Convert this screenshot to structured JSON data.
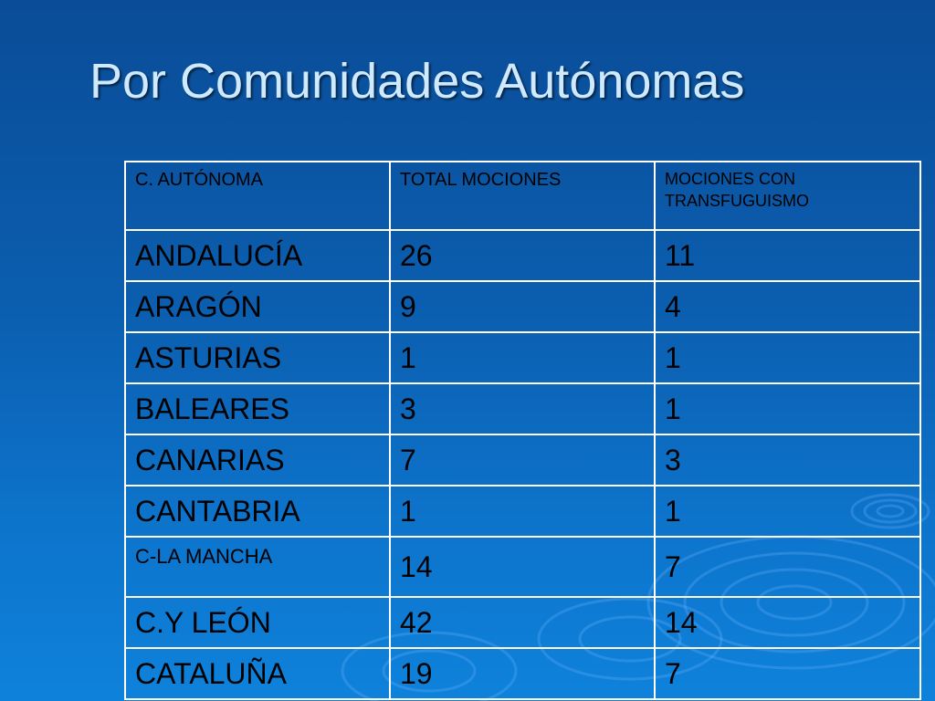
{
  "slide": {
    "title": "Por Comunidades Autónomas"
  },
  "table": {
    "headers": [
      "C. AUTÓNOMA",
      "TOTAL MOCIONES",
      "MOCIONES CON TRANSFUGUISMO"
    ],
    "rows": [
      [
        "ANDALUCÍA",
        "26",
        "11"
      ],
      [
        "ARAGÓN",
        "9",
        "4"
      ],
      [
        "ASTURIAS",
        "1",
        "1"
      ],
      [
        "BALEARES",
        "3",
        "1"
      ],
      [
        "CANARIAS",
        "7",
        "3"
      ],
      [
        "CANTABRIA",
        "1",
        "1"
      ],
      [
        "C-LA MANCHA",
        "14",
        "7"
      ],
      [
        "C.Y LEÓN",
        "42",
        "14"
      ],
      [
        "CATALUÑA",
        "19",
        "7"
      ]
    ]
  },
  "colors": {
    "background_top": "#0a4c97",
    "background_bottom": "#0e82db",
    "title_text": "#cfe9ff",
    "table_border": "#ffffff",
    "cell_text": "#000000"
  }
}
